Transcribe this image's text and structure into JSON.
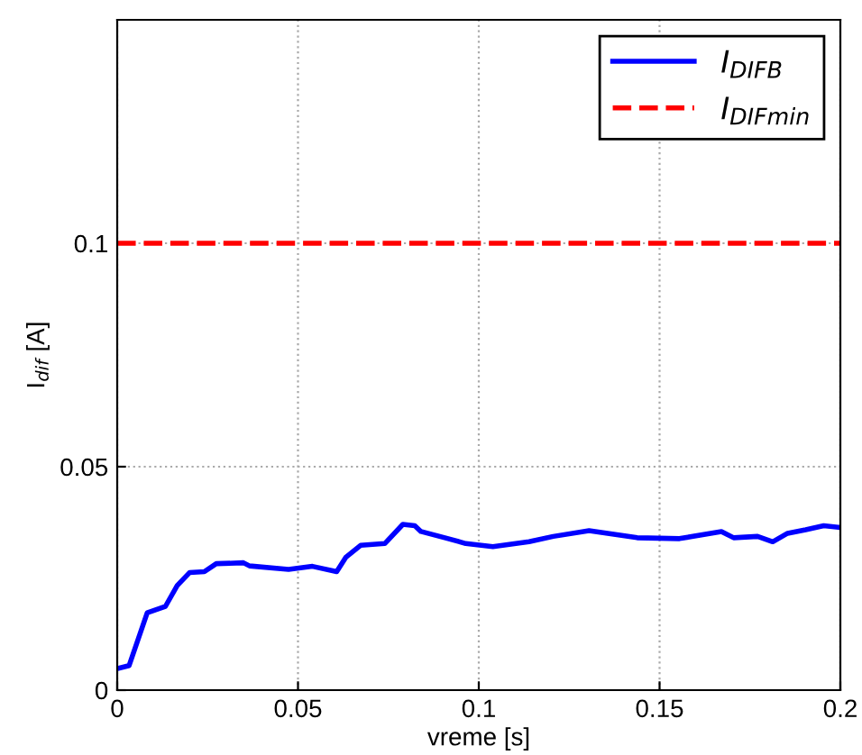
{
  "chart_data": {
    "type": "line",
    "xlabel": "vreme [s]",
    "ylabel": "I$_{dif}$ [A]",
    "xlim": [
      0,
      0.2
    ],
    "xticks": [
      0,
      0.05,
      0.1,
      0.15,
      0.2
    ],
    "ylim": [
      0,
      0.15
    ],
    "yticks": [
      0,
      0.05,
      0.1
    ],
    "grid": true,
    "legend": "top right",
    "series": [
      {
        "name": "I$_{DIFB}$",
        "color": "#0000ff",
        "line_style": "solid",
        "x": [
          0,
          0.0033,
          0.0083,
          0.0133,
          0.0166,
          0.02,
          0.0241,
          0.0274,
          0.0349,
          0.0366,
          0.0474,
          0.054,
          0.0607,
          0.0632,
          0.0673,
          0.074,
          0.079,
          0.0823,
          0.084,
          0.0906,
          0.0964,
          0.1039,
          0.1139,
          0.1206,
          0.1305,
          0.1438,
          0.1555,
          0.1671,
          0.1705,
          0.1771,
          0.1813,
          0.1854,
          0.1904,
          0.1954,
          0.2
        ],
        "values": [
          0.0048,
          0.0055,
          0.0173,
          0.0187,
          0.0234,
          0.0263,
          0.0265,
          0.0283,
          0.0285,
          0.0278,
          0.027,
          0.0277,
          0.0265,
          0.0297,
          0.0324,
          0.0328,
          0.0371,
          0.0368,
          0.0355,
          0.0341,
          0.0328,
          0.0321,
          0.0332,
          0.0344,
          0.0357,
          0.0341,
          0.0339,
          0.0355,
          0.0341,
          0.0344,
          0.0332,
          0.0351,
          0.0359,
          0.0368,
          0.0364
        ]
      },
      {
        "name": "I$_{DIFmin}$",
        "color": "#ff0000",
        "line_style": "dashed",
        "x": [
          0,
          0.2
        ],
        "values": [
          0.1,
          0.1
        ]
      }
    ]
  }
}
